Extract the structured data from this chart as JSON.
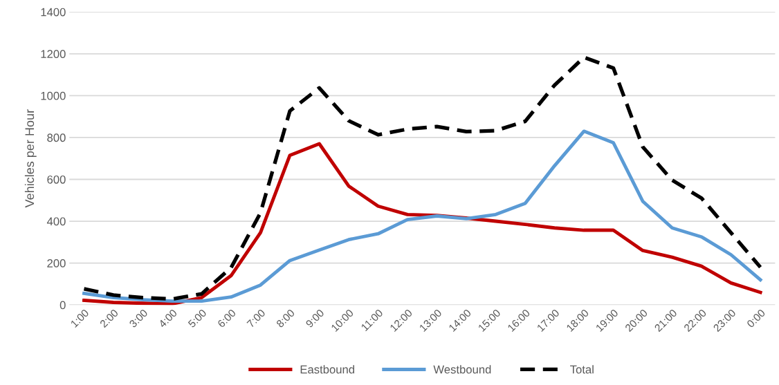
{
  "chart_data": {
    "type": "line",
    "ylabel": "Vehicles per Hour",
    "categories": [
      "1:00",
      "2:00",
      "3:00",
      "4:00",
      "5:00",
      "6:00",
      "7:00",
      "8:00",
      "9:00",
      "10:00",
      "11:00",
      "12:00",
      "13:00",
      "14:00",
      "15:00",
      "16:00",
      "17:00",
      "18:00",
      "19:00",
      "20:00",
      "21:00",
      "22:00",
      "23:00",
      "0:00"
    ],
    "series": [
      {
        "name": "Eastbound",
        "color": "#c00000",
        "line_style": "solid",
        "values": [
          22,
          12,
          8,
          5,
          35,
          140,
          345,
          715,
          770,
          568,
          472,
          432,
          428,
          415,
          400,
          385,
          368,
          357,
          357,
          260,
          228,
          185,
          105,
          60
        ]
      },
      {
        "name": "Westbound",
        "color": "#5b9bd5",
        "line_style": "solid",
        "values": [
          55,
          35,
          25,
          18,
          18,
          38,
          95,
          212,
          262,
          312,
          340,
          408,
          425,
          412,
          432,
          485,
          665,
          830,
          775,
          495,
          368,
          325,
          240,
          120
        ]
      },
      {
        "name": "Total",
        "color": "#000000",
        "line_style": "dashed",
        "values": [
          77,
          47,
          35,
          28,
          53,
          178,
          440,
          927,
          1037,
          880,
          813,
          840,
          852,
          828,
          833,
          877,
          1050,
          1183,
          1132,
          755,
          596,
          510,
          345,
          180
        ]
      }
    ],
    "ylim": [
      0,
      1400
    ],
    "yticks": [
      0,
      200,
      400,
      600,
      800,
      1000,
      1200,
      1400
    ],
    "grid": "y",
    "legend": "bottom",
    "marker": "none"
  }
}
